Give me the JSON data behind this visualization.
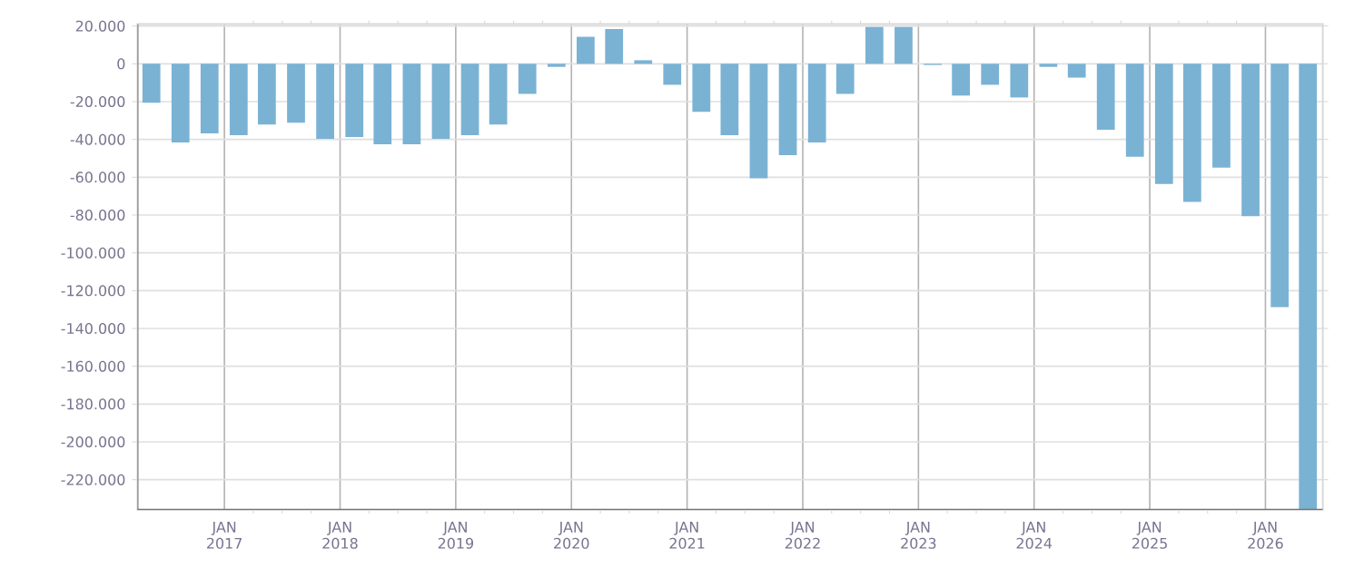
{
  "chart_data": {
    "type": "bar",
    "x": [
      "2016-05-15",
      "2016-08-15",
      "2016-11-15",
      "2017-02-15",
      "2017-05-15",
      "2017-08-15",
      "2017-11-15",
      "2018-02-15",
      "2018-05-15",
      "2018-08-15",
      "2018-11-15",
      "2019-02-15",
      "2019-05-15",
      "2019-08-15",
      "2019-11-15",
      "2020-02-15",
      "2020-05-15",
      "2020-08-15",
      "2020-11-15",
      "2021-02-15",
      "2021-05-15",
      "2021-08-15",
      "2021-11-15",
      "2022-02-15",
      "2022-05-15",
      "2022-08-15",
      "2022-11-15",
      "2023-02-15",
      "2023-05-15",
      "2023-08-15",
      "2023-11-15",
      "2024-02-15",
      "2024-05-15",
      "2024-08-15",
      "2024-11-15",
      "2025-02-15",
      "2025-05-15",
      "2025-08-15",
      "2025-11-15",
      "2026-02-15",
      "2026-05-15"
    ],
    "values": [
      -20600,
      -41600,
      -36800,
      -37800,
      -32100,
      -31100,
      -39700,
      -38700,
      -42500,
      -42500,
      -39700,
      -37800,
      -32100,
      -15900,
      -1600,
      14300,
      18400,
      1900,
      -11100,
      -25400,
      -37800,
      -60600,
      -48300,
      -41600,
      -15900,
      19500,
      19500,
      -600,
      -16800,
      -11100,
      -17800,
      -1600,
      -7300,
      -34900,
      -49200,
      -63500,
      -73000,
      -54900,
      -80600,
      -128700,
      -236000
    ],
    "color": "#7ab2d4",
    "xlim": [
      "2016-04-01",
      "2026-07-01"
    ],
    "xticks": [
      {
        "value": "2017-01-01",
        "label": "JAN 2017"
      },
      {
        "value": "2018-01-01",
        "label": "JAN 2018"
      },
      {
        "value": "2019-01-01",
        "label": "JAN 2019"
      },
      {
        "value": "2020-01-01",
        "label": "JAN 2020"
      },
      {
        "value": "2021-01-01",
        "label": "JAN 2021"
      },
      {
        "value": "2022-01-01",
        "label": "JAN 2022"
      },
      {
        "value": "2023-01-01",
        "label": "JAN 2023"
      },
      {
        "value": "2024-01-01",
        "label": "JAN 2024"
      },
      {
        "value": "2025-01-01",
        "label": "JAN 2025"
      },
      {
        "value": "2026-01-01",
        "label": "JAN 2026"
      }
    ],
    "ylim": [
      -236000,
      21000
    ],
    "yticks": [
      {
        "value": 20000,
        "label": "20.000"
      },
      {
        "value": 0,
        "label": "0"
      },
      {
        "value": -20000,
        "label": "-20.000"
      },
      {
        "value": -40000,
        "label": "-40.000"
      },
      {
        "value": -60000,
        "label": "-60.000"
      },
      {
        "value": -80000,
        "label": "-80.000"
      },
      {
        "value": -100000,
        "label": "-100.000"
      },
      {
        "value": -120000,
        "label": "-120.000"
      },
      {
        "value": -140000,
        "label": "-140.000"
      },
      {
        "value": -160000,
        "label": "-160.000"
      },
      {
        "value": -180000,
        "label": "-180.000"
      },
      {
        "value": -200000,
        "label": "-200.000"
      },
      {
        "value": -220000,
        "label": "-220.000"
      }
    ],
    "grid": true
  }
}
